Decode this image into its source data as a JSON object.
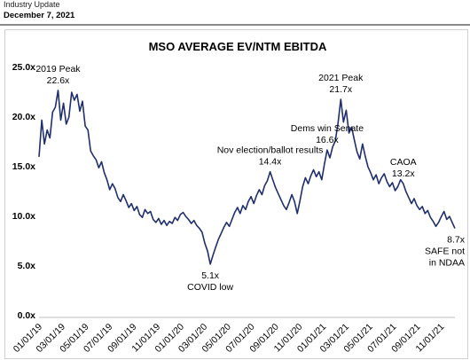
{
  "header": {
    "category": "Industry Update",
    "date": "December 7, 2021"
  },
  "chart_data": {
    "type": "line",
    "title": "MSO AVERAGE EV/NTM EBITDA",
    "xlabel": "",
    "ylabel": "",
    "ylim": [
      0,
      25
    ],
    "y_ticks": [
      "0.0x",
      "5.0x",
      "10.0x",
      "15.0x",
      "20.0x",
      "25.0x"
    ],
    "x_ticks": [
      "01/01/19",
      "03/01/19",
      "05/01/19",
      "07/01/19",
      "09/01/19",
      "11/01/19",
      "01/01/20",
      "03/01/20",
      "05/01/20",
      "07/01/20",
      "09/01/20",
      "11/01/20",
      "01/01/21",
      "03/01/21",
      "05/01/21",
      "07/01/21",
      "09/01/21",
      "11/01/21"
    ],
    "x_tick_dates": [
      "2019-01-01",
      "2019-03-01",
      "2019-05-01",
      "2019-07-01",
      "2019-09-01",
      "2019-11-01",
      "2020-01-01",
      "2020-03-01",
      "2020-05-01",
      "2020-07-01",
      "2020-09-01",
      "2020-11-01",
      "2021-01-01",
      "2021-03-01",
      "2021-05-01",
      "2021-07-01",
      "2021-09-01",
      "2021-11-01"
    ],
    "x_range": [
      "2019-01-01",
      "2021-12-07"
    ],
    "grid": false,
    "line_color": "#1f2f6e",
    "series": [
      {
        "values": [
          [
            "2019-01-01",
            15.9
          ],
          [
            "2019-01-08",
            19.6
          ],
          [
            "2019-01-15",
            17.2
          ],
          [
            "2019-01-22",
            18.6
          ],
          [
            "2019-01-29",
            17.8
          ],
          [
            "2019-02-05",
            20.4
          ],
          [
            "2019-02-12",
            20.9
          ],
          [
            "2019-02-19",
            22.6
          ],
          [
            "2019-02-26",
            19.6
          ],
          [
            "2019-03-05",
            21.3
          ],
          [
            "2019-03-12",
            19.2
          ],
          [
            "2019-03-19",
            19.9
          ],
          [
            "2019-03-26",
            22.4
          ],
          [
            "2019-04-02",
            21.6
          ],
          [
            "2019-04-09",
            22.2
          ],
          [
            "2019-04-16",
            20.5
          ],
          [
            "2019-04-23",
            21.5
          ],
          [
            "2019-04-30",
            19.0
          ],
          [
            "2019-05-07",
            18.6
          ],
          [
            "2019-05-14",
            16.5
          ],
          [
            "2019-05-21",
            16.0
          ],
          [
            "2019-05-28",
            15.6
          ],
          [
            "2019-06-04",
            14.8
          ],
          [
            "2019-06-11",
            15.4
          ],
          [
            "2019-06-18",
            14.3
          ],
          [
            "2019-06-25",
            13.6
          ],
          [
            "2019-07-02",
            12.6
          ],
          [
            "2019-07-09",
            13.2
          ],
          [
            "2019-07-16",
            12.7
          ],
          [
            "2019-07-23",
            11.8
          ],
          [
            "2019-07-30",
            11.4
          ],
          [
            "2019-08-06",
            12.1
          ],
          [
            "2019-08-13",
            11.5
          ],
          [
            "2019-08-20",
            10.8
          ],
          [
            "2019-08-27",
            11.2
          ],
          [
            "2019-09-03",
            10.5
          ],
          [
            "2019-09-10",
            10.9
          ],
          [
            "2019-09-17",
            10.1
          ],
          [
            "2019-09-24",
            9.8
          ],
          [
            "2019-10-01",
            10.6
          ],
          [
            "2019-10-08",
            10.2
          ],
          [
            "2019-10-15",
            10.4
          ],
          [
            "2019-10-22",
            9.6
          ],
          [
            "2019-10-29",
            9.3
          ],
          [
            "2019-11-05",
            9.7
          ],
          [
            "2019-11-12",
            9.1
          ],
          [
            "2019-11-19",
            9.5
          ],
          [
            "2019-11-26",
            9.0
          ],
          [
            "2019-12-03",
            9.4
          ],
          [
            "2019-12-10",
            9.2
          ],
          [
            "2019-12-17",
            9.8
          ],
          [
            "2019-12-24",
            9.5
          ],
          [
            "2019-12-31",
            10.1
          ],
          [
            "2020-01-07",
            10.3
          ],
          [
            "2020-01-14",
            9.9
          ],
          [
            "2020-01-21",
            9.6
          ],
          [
            "2020-01-28",
            9.2
          ],
          [
            "2020-02-04",
            9.5
          ],
          [
            "2020-02-11",
            9.0
          ],
          [
            "2020-02-18",
            8.7
          ],
          [
            "2020-02-25",
            8.3
          ],
          [
            "2020-03-03",
            7.2
          ],
          [
            "2020-03-10",
            6.4
          ],
          [
            "2020-03-17",
            5.1
          ],
          [
            "2020-03-24",
            6.0
          ],
          [
            "2020-03-31",
            6.8
          ],
          [
            "2020-04-07",
            7.6
          ],
          [
            "2020-04-14",
            8.2
          ],
          [
            "2020-04-21",
            8.8
          ],
          [
            "2020-04-28",
            9.3
          ],
          [
            "2020-05-05",
            8.9
          ],
          [
            "2020-05-12",
            9.6
          ],
          [
            "2020-05-19",
            10.3
          ],
          [
            "2020-05-26",
            10.8
          ],
          [
            "2020-06-02",
            10.2
          ],
          [
            "2020-06-09",
            11.0
          ],
          [
            "2020-06-16",
            10.6
          ],
          [
            "2020-06-23",
            11.4
          ],
          [
            "2020-06-30",
            11.9
          ],
          [
            "2020-07-07",
            11.2
          ],
          [
            "2020-07-14",
            12.0
          ],
          [
            "2020-07-21",
            12.6
          ],
          [
            "2020-07-28",
            12.1
          ],
          [
            "2020-08-04",
            13.0
          ],
          [
            "2020-08-11",
            13.5
          ],
          [
            "2020-08-18",
            14.4
          ],
          [
            "2020-08-25",
            13.6
          ],
          [
            "2020-09-01",
            12.8
          ],
          [
            "2020-09-08",
            12.2
          ],
          [
            "2020-09-15",
            11.6
          ],
          [
            "2020-09-22",
            11.0
          ],
          [
            "2020-09-29",
            10.6
          ],
          [
            "2020-10-06",
            11.3
          ],
          [
            "2020-10-13",
            12.1
          ],
          [
            "2020-10-20",
            11.4
          ],
          [
            "2020-10-27",
            10.2
          ],
          [
            "2020-11-03",
            11.5
          ],
          [
            "2020-11-10",
            12.9
          ],
          [
            "2020-11-17",
            13.8
          ],
          [
            "2020-11-24",
            13.2
          ],
          [
            "2020-12-01",
            14.0
          ],
          [
            "2020-12-08",
            14.6
          ],
          [
            "2020-12-15",
            13.9
          ],
          [
            "2020-12-22",
            14.4
          ],
          [
            "2020-12-29",
            13.6
          ],
          [
            "2021-01-05",
            15.2
          ],
          [
            "2021-01-12",
            16.6
          ],
          [
            "2021-01-19",
            15.8
          ],
          [
            "2021-01-26",
            16.9
          ],
          [
            "2021-02-02",
            17.5
          ],
          [
            "2021-02-09",
            19.3
          ],
          [
            "2021-02-16",
            21.7
          ],
          [
            "2021-02-23",
            19.4
          ],
          [
            "2021-03-02",
            20.6
          ],
          [
            "2021-03-09",
            18.3
          ],
          [
            "2021-03-16",
            18.9
          ],
          [
            "2021-03-23",
            17.6
          ],
          [
            "2021-03-30",
            16.4
          ],
          [
            "2021-04-06",
            15.7
          ],
          [
            "2021-04-13",
            17.2
          ],
          [
            "2021-04-20",
            16.0
          ],
          [
            "2021-04-27",
            14.9
          ],
          [
            "2021-05-04",
            14.3
          ],
          [
            "2021-05-11",
            13.6
          ],
          [
            "2021-05-18",
            14.1
          ],
          [
            "2021-05-25",
            13.2
          ],
          [
            "2021-06-01",
            13.8
          ],
          [
            "2021-06-08",
            14.2
          ],
          [
            "2021-06-15",
            13.4
          ],
          [
            "2021-06-22",
            12.9
          ],
          [
            "2021-06-29",
            13.3
          ],
          [
            "2021-07-06",
            12.5
          ],
          [
            "2021-07-13",
            12.9
          ],
          [
            "2021-07-20",
            13.6
          ],
          [
            "2021-07-27",
            13.2
          ],
          [
            "2021-08-03",
            12.4
          ],
          [
            "2021-08-10",
            11.8
          ],
          [
            "2021-08-17",
            11.2
          ],
          [
            "2021-08-24",
            11.7
          ],
          [
            "2021-08-31",
            11.0
          ],
          [
            "2021-09-07",
            10.6
          ],
          [
            "2021-09-14",
            10.9
          ],
          [
            "2021-09-21",
            10.2
          ],
          [
            "2021-09-28",
            10.5
          ],
          [
            "2021-10-05",
            9.8
          ],
          [
            "2021-10-12",
            9.4
          ],
          [
            "2021-10-19",
            8.9
          ],
          [
            "2021-10-26",
            9.3
          ],
          [
            "2021-11-02",
            9.9
          ],
          [
            "2021-11-09",
            10.4
          ],
          [
            "2021-11-16",
            9.6
          ],
          [
            "2021-11-23",
            9.9
          ],
          [
            "2021-11-30",
            9.3
          ],
          [
            "2021-12-07",
            8.7
          ]
        ]
      }
    ],
    "annotations": [
      {
        "lines": [
          "2019 Peak",
          "22.6x"
        ],
        "date": "2019-02-19",
        "value": 22.6,
        "position": "above"
      },
      {
        "lines": [
          "5.1x",
          "COVID low"
        ],
        "date": "2020-03-17",
        "value": 5.1,
        "position": "below"
      },
      {
        "lines": [
          "Nov election/ballot results",
          "14.4x"
        ],
        "date": "2020-08-18",
        "value": 14.4,
        "position": "above"
      },
      {
        "lines": [
          "Dems win Senate",
          "16.6x"
        ],
        "date": "2021-01-12",
        "value": 16.6,
        "position": "above"
      },
      {
        "lines": [
          "2021 Peak",
          "21.7x"
        ],
        "date": "2021-02-16",
        "value": 21.7,
        "position": "above"
      },
      {
        "lines": [
          "CAOA",
          "13.2x"
        ],
        "date": "2021-07-27",
        "value": 13.2,
        "position": "above"
      },
      {
        "lines": [
          "8.7x",
          "SAFE not",
          "in NDAA"
        ],
        "date": "2021-12-07",
        "value": 8.7,
        "position": "below"
      }
    ]
  }
}
